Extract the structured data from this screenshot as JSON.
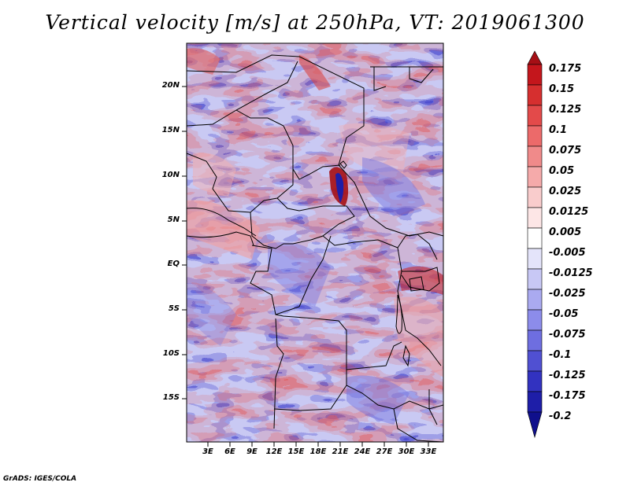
{
  "title": "Vertical velocity [m/s] at 250hPa, VT: 2019061300",
  "credit": "GrADS: IGES/COLA",
  "map": {
    "latitude_labels": [
      "20N",
      "15N",
      "10N",
      "5N",
      "EQ",
      "5S",
      "10S",
      "15S"
    ],
    "longitude_labels": [
      "3E",
      "6E",
      "9E",
      "12E",
      "15E",
      "18E",
      "21E",
      "24E",
      "27E",
      "30E",
      "33E"
    ]
  },
  "colorbar": {
    "labels": [
      "0.175",
      "0.15",
      "0.125",
      "0.1",
      "0.075",
      "0.05",
      "0.025",
      "0.0125",
      "0.005",
      "-0.005",
      "-0.0125",
      "-0.025",
      "-0.05",
      "-0.075",
      "-0.1",
      "-0.125",
      "-0.175",
      "-0.2"
    ],
    "colors": [
      "#a50f15",
      "#c4161c",
      "#d62f2f",
      "#e34a4a",
      "#ec6a6a",
      "#f08a8a",
      "#f5aaaa",
      "#f9cccc",
      "#fde6e6",
      "#ffffff",
      "#e4e4fa",
      "#c8c8f5",
      "#aaaaf0",
      "#8c8ceb",
      "#6e6ee0",
      "#5050d2",
      "#3232c0",
      "#1e1ea8",
      "#0f0f8c"
    ]
  }
}
